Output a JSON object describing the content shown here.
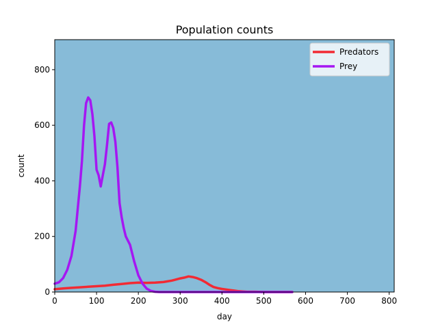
{
  "chart_data": {
    "type": "line",
    "title": "Population counts",
    "xlabel": "day",
    "ylabel": "count",
    "xlim": [
      0,
      812
    ],
    "ylim": [
      0,
      908
    ],
    "xticks": [
      0,
      100,
      200,
      300,
      400,
      500,
      600,
      700,
      800
    ],
    "yticks": [
      0,
      200,
      400,
      600,
      800
    ],
    "grid": false,
    "legend_position": "top-right",
    "plot_background": "#87bbd8",
    "series": [
      {
        "name": "Predators",
        "color": "#f22a33",
        "x": [
          0,
          20,
          40,
          60,
          80,
          100,
          120,
          140,
          160,
          180,
          200,
          220,
          240,
          260,
          280,
          300,
          310,
          320,
          330,
          340,
          350,
          360,
          370,
          380,
          390,
          400,
          410,
          420,
          430,
          440,
          450,
          460,
          480,
          500,
          520,
          540,
          568
        ],
        "y": [
          10,
          13,
          15,
          17,
          19,
          21,
          23,
          26,
          29,
          32,
          34,
          33,
          34,
          36,
          41,
          49,
          52,
          56,
          54,
          50,
          44,
          36,
          26,
          18,
          14,
          11,
          9,
          7,
          5,
          3,
          2,
          1,
          1,
          0,
          0,
          0,
          0
        ]
      },
      {
        "name": "Prey",
        "color": "#a517f2",
        "x": [
          0,
          10,
          20,
          30,
          40,
          50,
          60,
          65,
          70,
          75,
          80,
          85,
          90,
          95,
          100,
          105,
          110,
          115,
          120,
          125,
          130,
          135,
          140,
          145,
          150,
          155,
          160,
          165,
          170,
          180,
          190,
          200,
          210,
          220,
          230,
          240,
          250,
          260,
          280,
          300,
          350,
          400,
          450,
          500,
          568
        ],
        "y": [
          30,
          35,
          50,
          80,
          130,
          220,
          380,
          470,
          600,
          680,
          700,
          690,
          640,
          560,
          440,
          420,
          380,
          420,
          460,
          530,
          605,
          610,
          590,
          540,
          450,
          320,
          270,
          230,
          200,
          170,
          110,
          60,
          30,
          12,
          4,
          1,
          0,
          0,
          0,
          0,
          0,
          0,
          0,
          0,
          0
        ]
      }
    ]
  }
}
